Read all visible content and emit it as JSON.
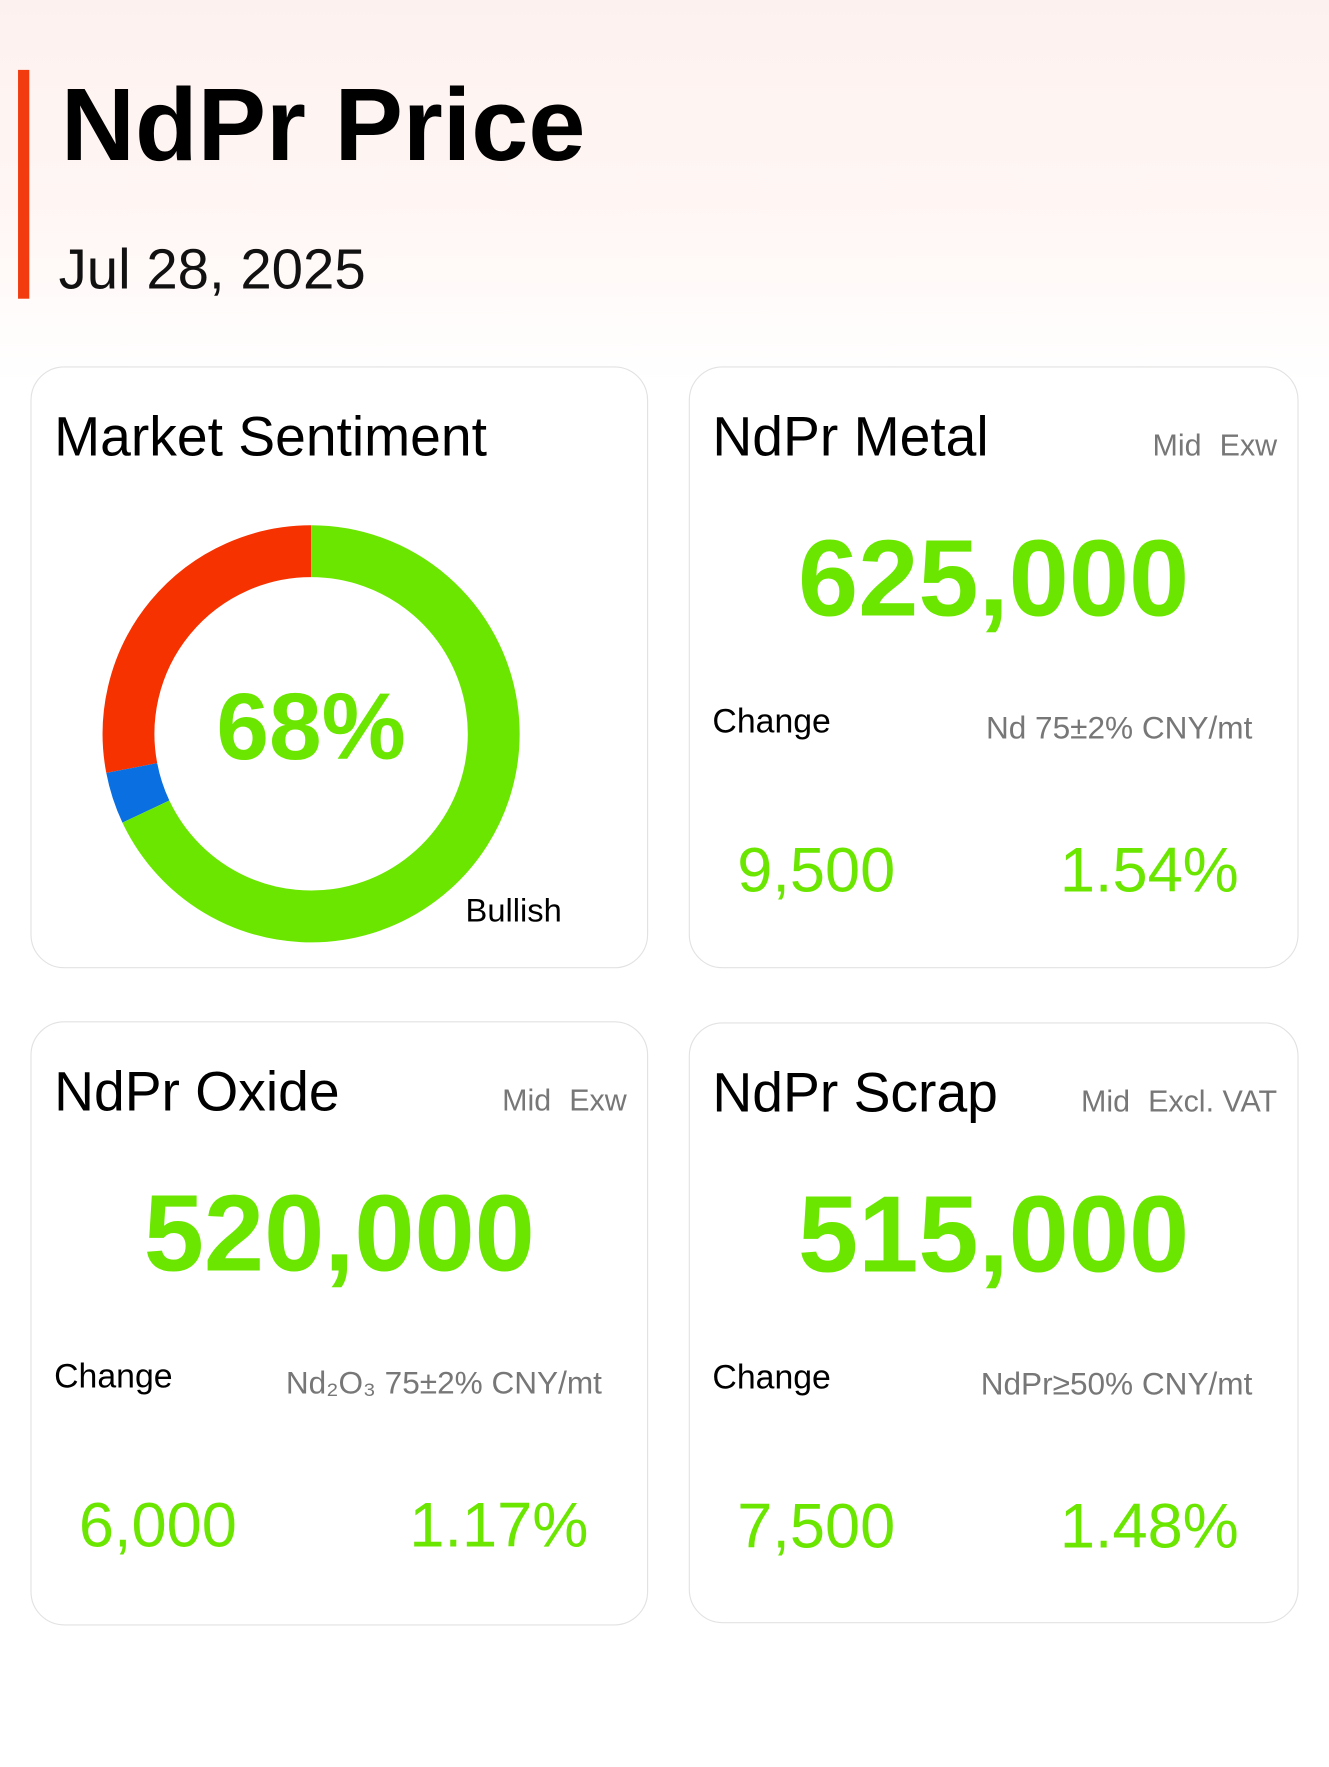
{
  "header": {
    "title": "NdPr Price",
    "date": "Jul 28, 2025"
  },
  "chart_data": {
    "type": "donut",
    "title": "Market Sentiment",
    "categories": [
      "Bullish",
      null,
      null
    ],
    "values": [
      68,
      4,
      28
    ],
    "value_labels": [
      "68%",
      null,
      null
    ],
    "colors": [
      "#6be600",
      "#0a6fe0",
      "#f53200"
    ]
  },
  "cards": [
    {
      "title": "NdPr Metal",
      "tags": [
        "Mid",
        "Exw"
      ],
      "price": "625,000",
      "change_label": "Change",
      "spec": "Nd 75±2% CNY/mt",
      "change": "9,500",
      "change_pct": "1.54%"
    },
    {
      "title": "NdPr Oxide",
      "tags": [
        "Mid",
        "Exw"
      ],
      "price": "520,000",
      "change_label": "Change",
      "spec": "Nd₂O₃ 75±2% CNY/mt",
      "change": "6,000",
      "change_pct": "1.17%"
    },
    {
      "title": "NdPr Scrap",
      "tags": [
        "Mid",
        "Excl. VAT"
      ],
      "price": "515,000",
      "change_label": "Change",
      "spec": "NdPr≥50% CNY/mt",
      "change": "7,500",
      "change_pct": "1.48%"
    }
  ]
}
